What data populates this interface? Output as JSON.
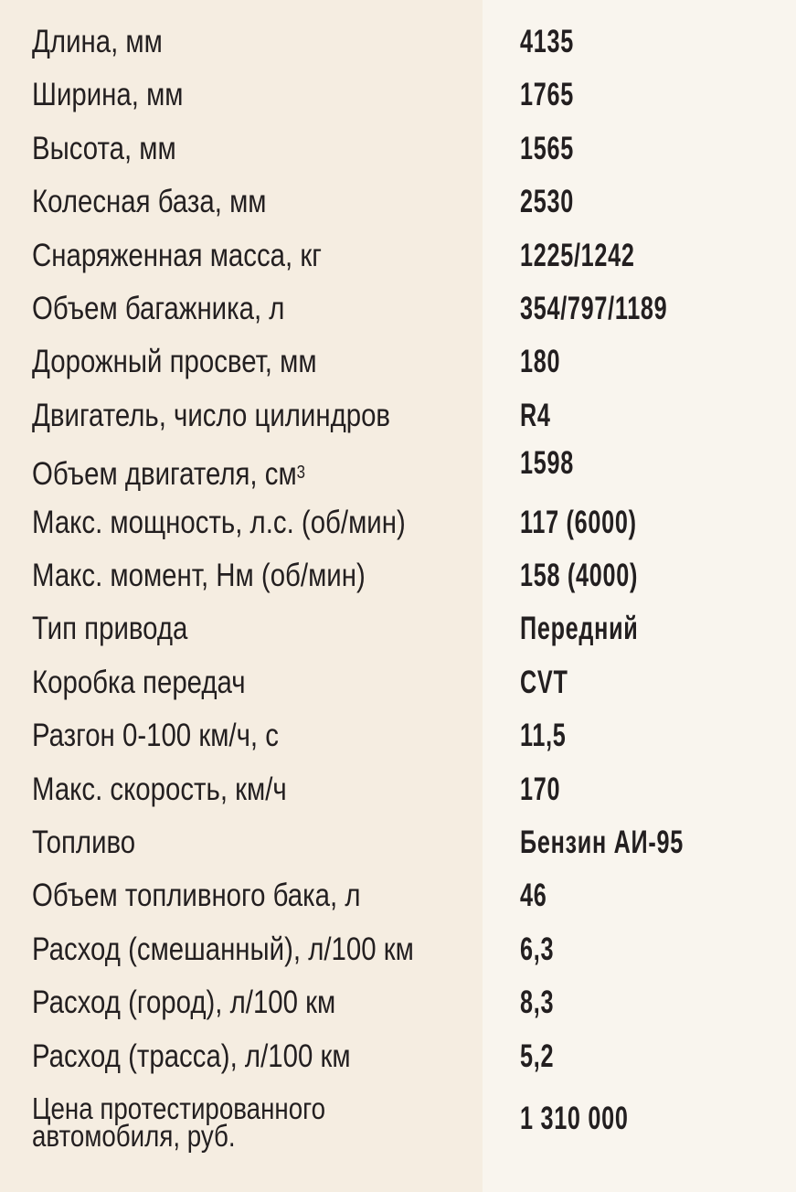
{
  "rows": [
    {
      "label": "Длина, мм",
      "value": "4135"
    },
    {
      "label": "Ширина, мм",
      "value": "1765"
    },
    {
      "label": "Высота, мм",
      "value": "1565"
    },
    {
      "label": "Колесная база, мм",
      "value": "2530"
    },
    {
      "label": "Снаряженная масса, кг",
      "value": "1225/1242"
    },
    {
      "label": "Объем багажника, л",
      "value": "354/797/1189"
    },
    {
      "label": "Дорожный просвет, мм",
      "value": "180"
    },
    {
      "label": "Двигатель, число цилиндров",
      "value": "R4"
    },
    {
      "label": "Объем двигателя, см",
      "label_sup": "3",
      "value": "1598"
    },
    {
      "label": "Макс. мощность, л.с. (об/мин)",
      "value": "117 (6000)"
    },
    {
      "label": "Макс. момент, Нм (об/мин)",
      "value": "158 (4000)"
    },
    {
      "label": "Тип привода",
      "value": "Передний"
    },
    {
      "label": "Коробка передач",
      "value": "CVT"
    },
    {
      "label": "Разгон 0-100 км/ч, с",
      "value": "11,5"
    },
    {
      "label": "Макс. скорость, км/ч",
      "value": "170"
    },
    {
      "label": "Топливо",
      "value": "Бензин АИ-95"
    },
    {
      "label": "Объем топливного бака, л",
      "value": "46"
    },
    {
      "label": "Расход (смешанный), л/100 км",
      "value": "6,3"
    },
    {
      "label": "Расход (город), л/100 км",
      "value": "8,3"
    },
    {
      "label": "Расход (трасса), л/100 км",
      "value": "5,2"
    }
  ],
  "price": {
    "label_line1": "Цена протестированного",
    "label_line2": "автомобиля, руб.",
    "value": "1 310 000"
  }
}
